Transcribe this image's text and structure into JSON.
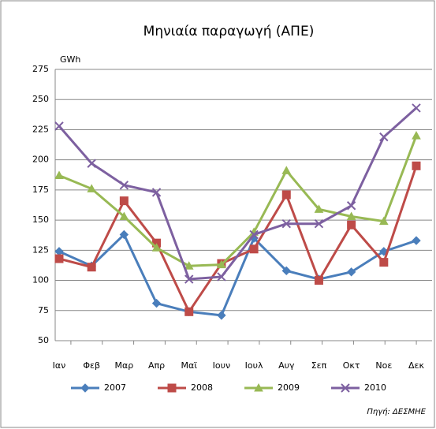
{
  "chart_data": {
    "type": "line",
    "title": "Μηνιαία παραγωγή (ΑΠΕ)",
    "y_label": "GWh",
    "source": "Πηγή: ΔΕΣΜΗΕ",
    "categories": [
      "Ιαν",
      "Φεβ",
      "Μαρ",
      "Απρ",
      "Μαϊ",
      "Ιουν",
      "Ιουλ",
      "Αυγ",
      "Σεπ",
      "Οκτ",
      "Νοε",
      "Δεκ"
    ],
    "series": [
      {
        "name": "2007",
        "color": "#4a7ebb",
        "marker": "diamond",
        "values": [
          124,
          112,
          138,
          81,
          74,
          71,
          135,
          108,
          101,
          107,
          124,
          133
        ]
      },
      {
        "name": "2008",
        "color": "#be4b48",
        "marker": "square",
        "values": [
          118,
          111,
          166,
          131,
          74,
          114,
          126,
          171,
          100,
          146,
          115,
          195
        ]
      },
      {
        "name": "2009",
        "color": "#98b954",
        "marker": "triangle",
        "values": [
          187,
          176,
          153,
          127,
          112,
          113,
          140,
          191,
          159,
          153,
          149,
          220
        ]
      },
      {
        "name": "2010",
        "color": "#7d60a0",
        "marker": "x",
        "values": [
          228,
          197,
          179,
          173,
          101,
          103,
          138,
          147,
          147,
          162,
          219,
          243
        ]
      }
    ],
    "ylim": [
      50,
      275
    ],
    "yticks": [
      50,
      75,
      100,
      125,
      150,
      175,
      200,
      225,
      250,
      275
    ],
    "grid": true,
    "legend": "bottom"
  }
}
